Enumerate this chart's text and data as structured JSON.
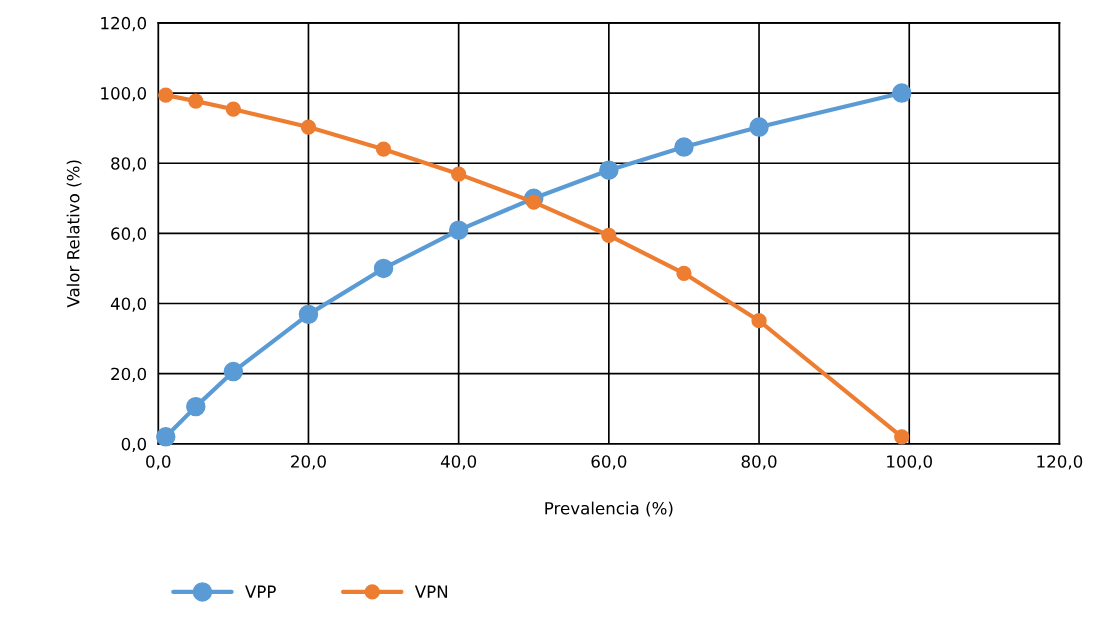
{
  "chart_data": {
    "type": "line",
    "xlabel": "Prevalencia (%)",
    "ylabel": "Valor Relativo (%)",
    "x": [
      1,
      5,
      10,
      20,
      30,
      40,
      50,
      60,
      70,
      80,
      99
    ],
    "series": [
      {
        "name": "VPP",
        "color": "#5b9bd5",
        "values": [
          2.0,
          10.6,
          20.6,
          36.9,
          50.0,
          60.9,
          70.0,
          78.0,
          84.6,
          90.3,
          100.0
        ]
      },
      {
        "name": "VPN",
        "color": "#ed7d31",
        "values": [
          99.4,
          97.7,
          95.4,
          90.3,
          84.0,
          76.9,
          68.9,
          59.4,
          48.6,
          35.1,
          2.0
        ]
      }
    ],
    "xlim": [
      0,
      120
    ],
    "ylim": [
      0,
      120
    ],
    "xticks": [
      {
        "value": 0,
        "label": "0,0"
      },
      {
        "value": 20,
        "label": "20,0"
      },
      {
        "value": 40,
        "label": "40,0"
      },
      {
        "value": 60,
        "label": "60,0"
      },
      {
        "value": 80,
        "label": "80,0"
      },
      {
        "value": 100,
        "label": "100,0"
      },
      {
        "value": 120,
        "label": "120,0"
      }
    ],
    "yticks": [
      {
        "value": 0,
        "label": "0,0"
      },
      {
        "value": 20,
        "label": "20,0"
      },
      {
        "value": 40,
        "label": "40,0"
      },
      {
        "value": 60,
        "label": "60,0"
      },
      {
        "value": 80,
        "label": "80,0"
      },
      {
        "value": 100,
        "label": "100,0"
      },
      {
        "value": 120,
        "label": "120,0"
      }
    ],
    "grid": true,
    "legend": "bottom left",
    "marker": "circle",
    "line_style": "solid"
  }
}
